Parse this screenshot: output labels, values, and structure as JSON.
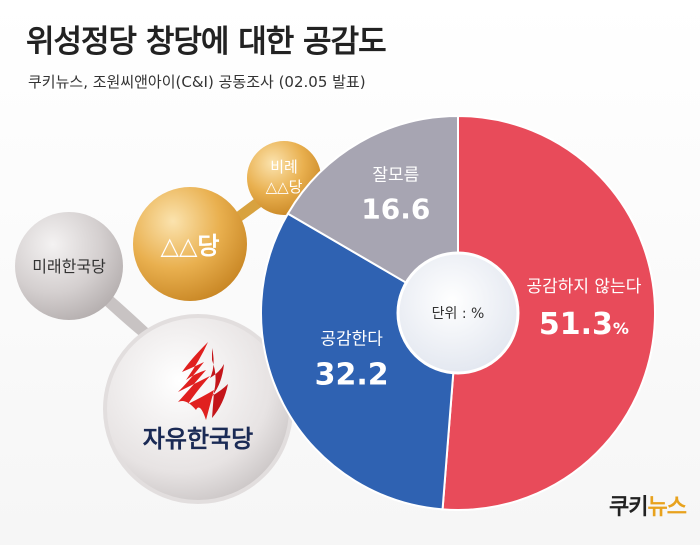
{
  "title": "위성정당 창당에 대한 공감도",
  "subtitle": "쿠키뉴스, 조원씨앤아이(C&I) 공동조사 (02.05 발표)",
  "center_label": "단위 : %",
  "bubbles": {
    "mirae": "미래한국당",
    "triangle": "△△당",
    "bire_line1": "비례",
    "bire_line2": "△△당",
    "jayu": "자유한국당"
  },
  "brand": {
    "part1": "쿠키",
    "part2": "뉴스"
  },
  "colors": {
    "disagree": "#e84b5a",
    "agree": "#2f62b2",
    "unknown": "#a7a5b2",
    "brand_accent": "#e8a21d",
    "jayu_red": "#e0201f",
    "jayu_navy": "#1a2a55"
  },
  "chart_data": {
    "type": "pie",
    "donut": true,
    "unit": "%",
    "slices": [
      {
        "label": "공감하지 않는다",
        "value": 51.3,
        "display": "51.3",
        "color": "#e84b5a"
      },
      {
        "label": "공감한다",
        "value": 32.2,
        "display": "32.2",
        "color": "#2f62b2"
      },
      {
        "label": "잘모름",
        "value": 16.6,
        "display": "16.6",
        "color": "#a7a5b2"
      }
    ]
  }
}
